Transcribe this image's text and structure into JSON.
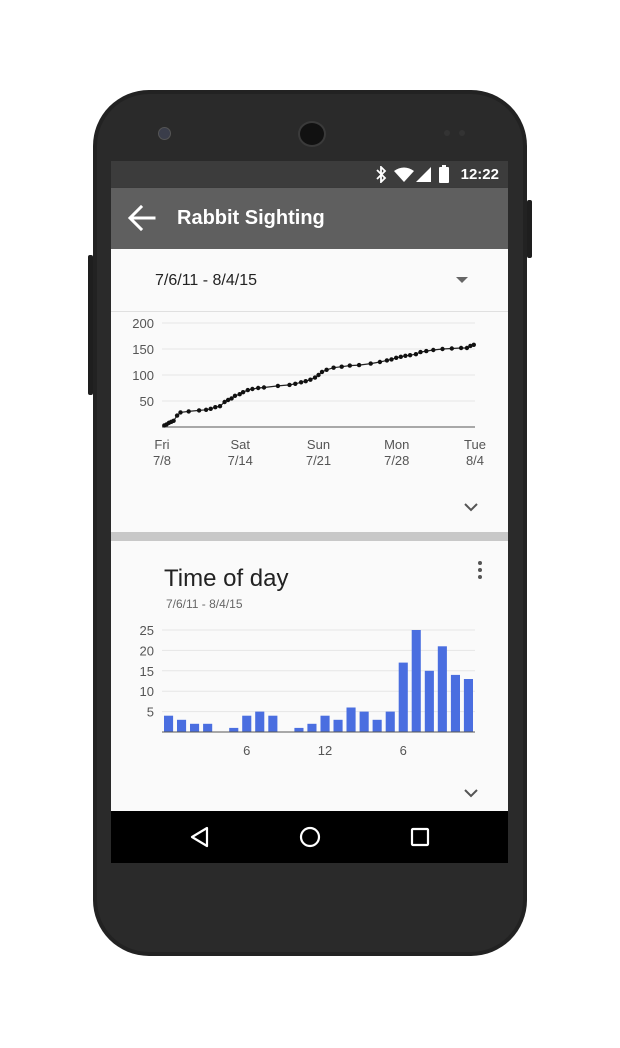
{
  "status": {
    "time": "12:22"
  },
  "appbar": {
    "title": "Rabbit Sighting"
  },
  "card1": {
    "date_range": "7/6/11 - 8/4/15"
  },
  "card2": {
    "title": "Time of day",
    "subtitle": "7/6/11 - 8/4/15"
  },
  "colors": {
    "appbar": "#5f5f5f",
    "statusbar": "#3c3c3c",
    "bar": "#4a6ee0",
    "line": "#222222"
  },
  "icons": [
    "back-arrow-icon",
    "dropdown-arrow-icon",
    "chevron-down-icon",
    "more-vert-icon",
    "bluetooth-icon",
    "wifi-icon",
    "signal-icon",
    "battery-icon",
    "nav-back-icon",
    "nav-home-icon",
    "nav-recents-icon"
  ],
  "chart_data": [
    {
      "type": "line",
      "ylim": [
        0,
        200
      ],
      "yticks": [
        "200",
        "150",
        "100",
        "50"
      ],
      "xticks": [
        {
          "day": "Fri",
          "date": "7/8"
        },
        {
          "day": "Sat",
          "date": "7/14"
        },
        {
          "day": "Sun",
          "date": "7/21"
        },
        {
          "day": "Mon",
          "date": "7/28"
        },
        {
          "day": "Tue",
          "date": "8/4"
        }
      ],
      "x_day_range": [
        8,
        35
      ],
      "series": [
        {
          "points": [
            [
              8.2,
              3
            ],
            [
              8.4,
              5
            ],
            [
              8.6,
              8
            ],
            [
              8.8,
              10
            ],
            [
              9.0,
              12
            ],
            [
              9.3,
              22
            ],
            [
              9.6,
              28
            ],
            [
              10.3,
              30
            ],
            [
              11.2,
              32
            ],
            [
              11.8,
              33
            ],
            [
              12.2,
              35
            ],
            [
              12.6,
              38
            ],
            [
              13.0,
              40
            ],
            [
              13.4,
              48
            ],
            [
              13.7,
              52
            ],
            [
              14.0,
              55
            ],
            [
              14.3,
              60
            ],
            [
              14.7,
              63
            ],
            [
              15.0,
              67
            ],
            [
              15.4,
              71
            ],
            [
              15.8,
              73
            ],
            [
              16.3,
              75
            ],
            [
              16.8,
              76
            ],
            [
              18.0,
              79
            ],
            [
              19.0,
              81
            ],
            [
              19.5,
              83
            ],
            [
              20.0,
              86
            ],
            [
              20.4,
              88
            ],
            [
              20.8,
              91
            ],
            [
              21.2,
              95
            ],
            [
              21.5,
              100
            ],
            [
              21.8,
              106
            ],
            [
              22.2,
              110
            ],
            [
              22.8,
              114
            ],
            [
              23.5,
              116
            ],
            [
              24.2,
              118
            ],
            [
              25.0,
              119
            ],
            [
              26.0,
              122
            ],
            [
              26.8,
              125
            ],
            [
              27.4,
              128
            ],
            [
              27.8,
              130
            ],
            [
              28.2,
              133
            ],
            [
              28.6,
              135
            ],
            [
              29.0,
              137
            ],
            [
              29.4,
              138
            ],
            [
              29.9,
              140
            ],
            [
              30.3,
              144
            ],
            [
              30.8,
              146
            ],
            [
              31.4,
              148
            ],
            [
              32.2,
              150
            ],
            [
              33.0,
              151
            ],
            [
              33.8,
              152
            ],
            [
              34.3,
              152
            ],
            [
              34.6,
              156
            ],
            [
              34.9,
              158
            ]
          ]
        }
      ]
    },
    {
      "type": "bar",
      "ylim": [
        0,
        25
      ],
      "yticks": [
        "25",
        "20",
        "15",
        "10",
        "5"
      ],
      "xticks": [
        {
          "label": "6",
          "hour": 6
        },
        {
          "label": "12",
          "hour": 12
        },
        {
          "label": "6",
          "hour": 18
        }
      ],
      "hours": [
        0,
        1,
        2,
        3,
        4,
        5,
        6,
        7,
        8,
        9,
        10,
        11,
        12,
        13,
        14,
        15,
        16,
        17,
        18,
        19,
        20,
        21,
        22,
        23
      ],
      "values": [
        4,
        3,
        2,
        2,
        0,
        1,
        4,
        5,
        4,
        0,
        1,
        2,
        4,
        3,
        6,
        5,
        3,
        5,
        17,
        25,
        15,
        21,
        14,
        13
      ]
    }
  ]
}
